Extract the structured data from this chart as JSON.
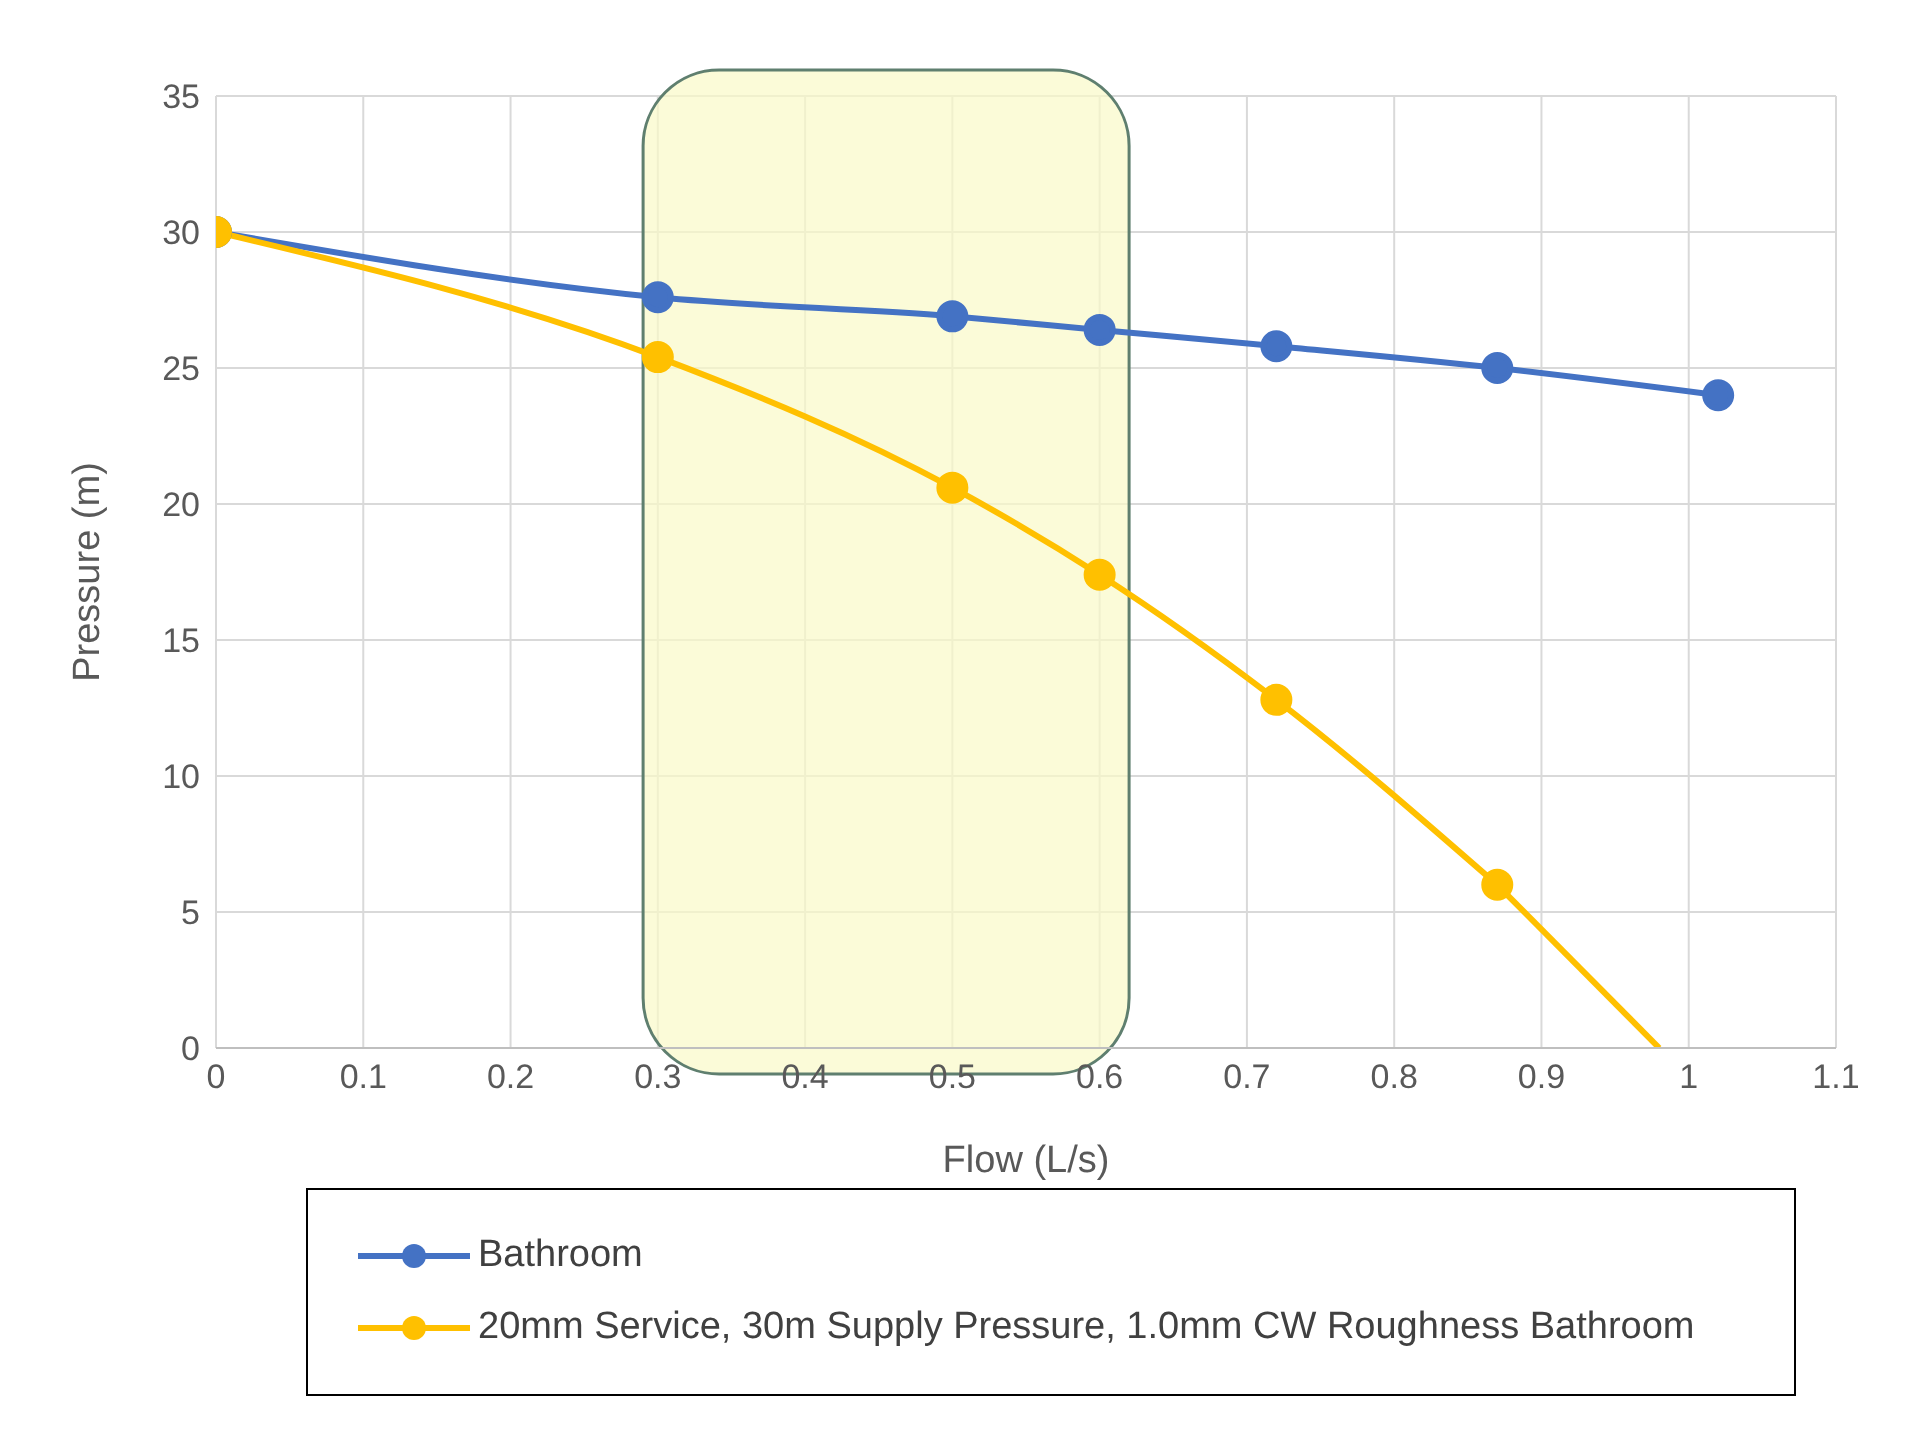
{
  "chart_data": {
    "type": "line",
    "xlabel": "Flow (L/s)",
    "ylabel": "Pressure (m)",
    "xlim": [
      0,
      1.1
    ],
    "xticks": [
      0,
      0.1,
      0.2,
      0.3,
      0.4,
      0.5,
      0.6,
      0.7,
      0.8,
      0.9,
      1,
      1.1
    ],
    "ylim": [
      0,
      35
    ],
    "yticks": [
      0,
      5,
      10,
      15,
      20,
      25,
      30,
      35
    ],
    "grid": true,
    "legend": "bottom",
    "marker": "circle",
    "line_style": "solid",
    "series": [
      {
        "name": "Bathroom",
        "color": "#4472c4",
        "x": [
          0,
          0.3,
          0.5,
          0.6,
          0.72,
          0.87,
          1.02
        ],
        "values": [
          30,
          27.6,
          26.9,
          26.4,
          25.8,
          25.0,
          24.0
        ]
      },
      {
        "name": "20mm Service, 30m Supply Pressure, 1.0mm CW Roughness Bathroom",
        "color": "#ffc000",
        "x": [
          0,
          0.3,
          0.5,
          0.6,
          0.72,
          0.87
        ],
        "values": [
          30,
          25.4,
          20.6,
          17.4,
          12.8,
          6.0
        ]
      },
      {
        "color": "#ffc000",
        "marker": "none",
        "x": [
          0.87,
          0.98
        ],
        "values": [
          6.0,
          0
        ]
      }
    ],
    "bands": [
      {
        "axis": "x",
        "from": 0.29,
        "to": 0.62,
        "color": "#fafac8"
      }
    ]
  }
}
